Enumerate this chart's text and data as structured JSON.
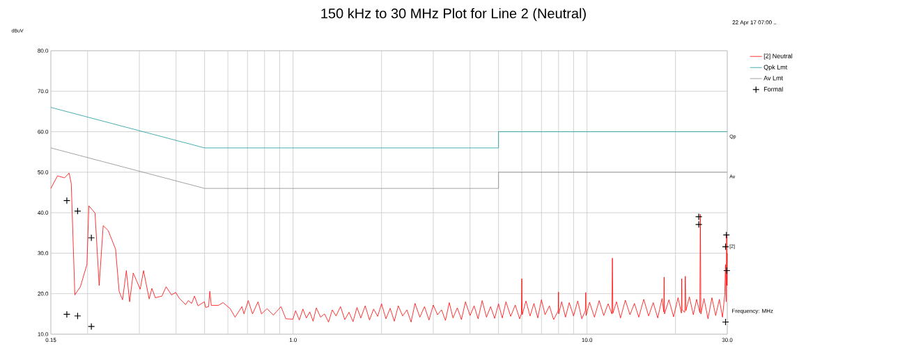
{
  "chart_data": {
    "type": "line",
    "title": "150 kHz to 30 MHz Plot for Line 2 (Neutral)",
    "xlabel": "Frequency: MHz",
    "ylabel": "dBuV",
    "annotations": [
      "22 Apr 17 07:00 ..",
      "Qp",
      "Av",
      "[2]"
    ],
    "log": "x",
    "grid": true,
    "legend": "top right",
    "xlim": [
      0.15,
      30
    ],
    "ylim": [
      10,
      80
    ],
    "xticks": [
      {
        "value": 0.15,
        "label": "0.15"
      },
      {
        "value": 0.2,
        "label": null
      },
      {
        "value": 0.3,
        "label": null
      },
      {
        "value": 0.4,
        "label": null
      },
      {
        "value": 0.5,
        "label": null
      },
      {
        "value": 0.6,
        "label": null
      },
      {
        "value": 0.7,
        "label": null
      },
      {
        "value": 0.8,
        "label": null
      },
      {
        "value": 0.9,
        "label": null
      },
      {
        "value": 1,
        "label": "1.0"
      },
      {
        "value": 2,
        "label": null
      },
      {
        "value": 3,
        "label": null
      },
      {
        "value": 4,
        "label": null
      },
      {
        "value": 5,
        "label": null
      },
      {
        "value": 6,
        "label": null
      },
      {
        "value": 7,
        "label": null
      },
      {
        "value": 8,
        "label": null
      },
      {
        "value": 9,
        "label": null
      },
      {
        "value": 10,
        "label": "10.0"
      },
      {
        "value": 20,
        "label": null
      },
      {
        "value": 30,
        "label": "30.0"
      }
    ],
    "yticks": [
      {
        "value": 10,
        "label": "10.0"
      },
      {
        "value": 20,
        "label": "20.0"
      },
      {
        "value": 30,
        "label": "30.0"
      },
      {
        "value": 40,
        "label": "40.0"
      },
      {
        "value": 50,
        "label": "50.0"
      },
      {
        "value": 60,
        "label": "60.0"
      },
      {
        "value": 70,
        "label": "70.0"
      },
      {
        "value": 80,
        "label": "80.0"
      }
    ],
    "series": [
      {
        "name": "[2] Neutral",
        "color": "#ff0000",
        "marker": "none",
        "x": [
          0.15,
          0.158,
          0.167,
          0.173,
          0.176,
          0.181,
          0.189,
          0.199,
          0.202,
          0.212,
          0.219,
          0.226,
          0.235,
          0.249,
          0.256,
          0.263,
          0.271,
          0.278,
          0.286,
          0.302,
          0.31,
          0.324,
          0.331,
          0.34,
          0.358,
          0.37,
          0.386,
          0.399,
          0.41,
          0.431,
          0.44,
          0.452,
          0.462,
          0.475,
          0.499,
          0.504,
          0.516,
          0.521,
          0.527,
          0.557,
          0.578,
          0.611,
          0.635,
          0.67,
          0.681,
          0.704,
          0.728,
          0.76,
          0.781,
          0.816,
          0.857,
          0.91,
          0.945,
          0.999,
          1.02,
          1.05,
          1.08,
          1.11,
          1.14,
          1.17,
          1.2,
          1.24,
          1.28,
          1.32,
          1.36,
          1.4,
          1.45,
          1.5,
          1.55,
          1.6,
          1.65,
          1.7,
          1.76,
          1.82,
          1.88,
          1.94,
          2.0,
          2.07,
          2.14,
          2.21,
          2.28,
          2.36,
          2.44,
          2.52,
          2.6,
          2.7,
          2.8,
          2.9,
          3.0,
          3.1,
          3.2,
          3.3,
          3.4,
          3.5,
          3.62,
          3.74,
          3.86,
          4.0,
          4.13,
          4.26,
          4.4,
          4.55,
          4.7,
          4.85,
          5.0,
          5.15,
          5.3,
          5.5,
          5.7,
          5.9,
          5.98,
          6.0,
          6.02,
          6.2,
          6.4,
          6.6,
          6.8,
          7.0,
          7.2,
          7.45,
          7.7,
          7.95,
          7.99,
          8.0,
          8.01,
          8.2,
          8.45,
          8.7,
          9.0,
          9.3,
          9.6,
          9.87,
          9.9,
          9.93,
          10.2,
          10.6,
          11.0,
          11.4,
          11.8,
          12.15,
          12.2,
          12.25,
          12.6,
          13.0,
          13.5,
          14.0,
          14.5,
          15.0,
          15.6,
          16.2,
          16.8,
          17.4,
          18.0,
          18.25,
          18.3,
          18.35,
          19.0,
          19.7,
          20.4,
          20.95,
          21.0,
          21.05,
          21.5,
          21.6,
          21.7,
          22.3,
          23.0,
          23.6,
          24.2,
          24.3,
          24.4,
          25.0,
          25.8,
          26.6,
          27.4,
          28.2,
          28.9,
          29.4,
          29.6,
          29.75,
          29.85,
          29.95,
          30.0
        ],
        "values": [
          46.0,
          49.1,
          48.6,
          49.8,
          47.2,
          19.7,
          21.7,
          27.2,
          41.7,
          39.9,
          22.0,
          36.8,
          35.6,
          31.0,
          20.6,
          18.5,
          25.7,
          18.0,
          25.1,
          21.1,
          25.7,
          18.7,
          21.3,
          19.0,
          19.4,
          21.7,
          19.7,
          20.3,
          18.9,
          17.3,
          18.3,
          17.6,
          19.4,
          17.0,
          18.0,
          16.6,
          16.8,
          20.6,
          17.1,
          17.1,
          17.8,
          16.3,
          14.2,
          16.8,
          15.0,
          18.3,
          15.0,
          18.0,
          15.0,
          16.3,
          14.7,
          16.8,
          13.8,
          13.7,
          15.8,
          13.5,
          16.2,
          14.0,
          15.5,
          13.2,
          16.5,
          14.2,
          15.0,
          13.0,
          16.0,
          14.5,
          16.8,
          13.6,
          15.4,
          13.1,
          16.6,
          14.0,
          17.0,
          13.5,
          16.2,
          14.4,
          17.5,
          13.8,
          16.4,
          13.2,
          17.0,
          14.5,
          16.0,
          13.0,
          17.6,
          14.2,
          16.8,
          13.5,
          17.2,
          14.8,
          16.0,
          13.4,
          17.8,
          14.0,
          16.5,
          13.6,
          18.0,
          14.6,
          17.0,
          13.8,
          18.3,
          14.2,
          16.8,
          13.9,
          17.5,
          14.0,
          18.0,
          14.4,
          17.2,
          13.8,
          15.0,
          23.7,
          14.8,
          18.2,
          14.5,
          17.6,
          14.0,
          18.5,
          14.8,
          17.0,
          13.6,
          15.5,
          16.0,
          20.4,
          15.0,
          18.0,
          14.2,
          17.8,
          14.5,
          18.2,
          13.8,
          15.8,
          20.3,
          14.6,
          17.9,
          14.2,
          18.3,
          14.6,
          17.5,
          15.0,
          28.8,
          15.2,
          18.0,
          14.0,
          18.4,
          14.8,
          17.6,
          14.2,
          18.6,
          14.5,
          17.8,
          14.0,
          18.8,
          15.5,
          24.1,
          15.0,
          18.5,
          14.3,
          19.0,
          15.2,
          23.7,
          16.0,
          15.4,
          24.3,
          15.8,
          19.2,
          14.8,
          18.6,
          15.3,
          39.6,
          15.0,
          18.8,
          13.8,
          19.0,
          14.6,
          18.6,
          14.2,
          19.6,
          27.2,
          18.0,
          34.5,
          22.0,
          30.0
        ]
      },
      {
        "name": "Qpk Lmt",
        "color": "#1a9a9a",
        "marker": "none",
        "x": [
          0.15,
          0.5,
          5,
          5,
          30
        ],
        "values": [
          66,
          56,
          56,
          60,
          60
        ]
      },
      {
        "name": "Av Lmt",
        "color": "#8c8c8c",
        "marker": "none",
        "x": [
          0.15,
          0.5,
          5,
          5,
          30
        ],
        "values": [
          56,
          46,
          46,
          50,
          50
        ]
      },
      {
        "name": "Formal",
        "color": "#000000",
        "type": "scatter",
        "marker": "cross",
        "x": [
          0.17,
          0.185,
          0.206,
          0.17,
          0.185,
          0.206,
          24.0,
          24.0,
          29.8,
          29.6,
          29.9,
          29.6
        ],
        "values": [
          43.0,
          40.4,
          33.8,
          14.9,
          14.5,
          11.9,
          39.0,
          37.1,
          34.5,
          31.6,
          25.7,
          13.0
        ]
      }
    ]
  }
}
